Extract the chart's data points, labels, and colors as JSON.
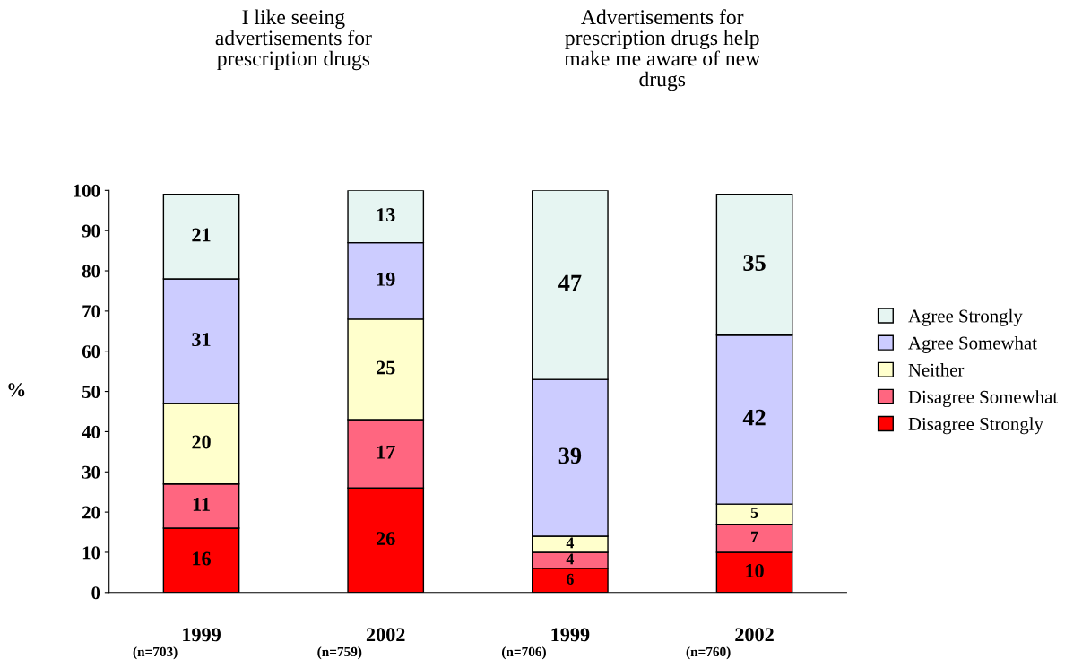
{
  "chart_data": {
    "type": "bar",
    "stacked": true,
    "ylabel": "%",
    "categories": [
      "1999",
      "2002",
      "1999",
      "2002"
    ],
    "series": [
      {
        "name": "Disagree Strongly",
        "color": "#ff0000",
        "values": [
          16,
          26,
          6,
          10
        ]
      },
      {
        "name": "Disagree Somewhat",
        "color": "#ff6680",
        "values": [
          11,
          17,
          4,
          7
        ]
      },
      {
        "name": "Neither",
        "color": "#ffffcc",
        "values": [
          20,
          25,
          4,
          5
        ]
      },
      {
        "name": "Agree Somewhat",
        "color": "#ccccff",
        "values": [
          31,
          19,
          39,
          42
        ]
      },
      {
        "name": "Agree Strongly",
        "color": "#e6f5f2",
        "values": [
          21,
          13,
          47,
          35
        ]
      }
    ],
    "ylim": [
      0,
      100
    ],
    "yticks": [
      0,
      10,
      20,
      30,
      40,
      50,
      60,
      70,
      80,
      90,
      100
    ],
    "grid": false,
    "legend": "right",
    "data_labels": true,
    "annotations": [
      "I like seeing\nadvertisements for\nprescription drugs",
      "Advertisements for\nprescription drugs help\nmake me aware of new\ndrugs",
      "(n=703)",
      "(n=759)",
      "(n=706)",
      "(n=760)"
    ]
  }
}
